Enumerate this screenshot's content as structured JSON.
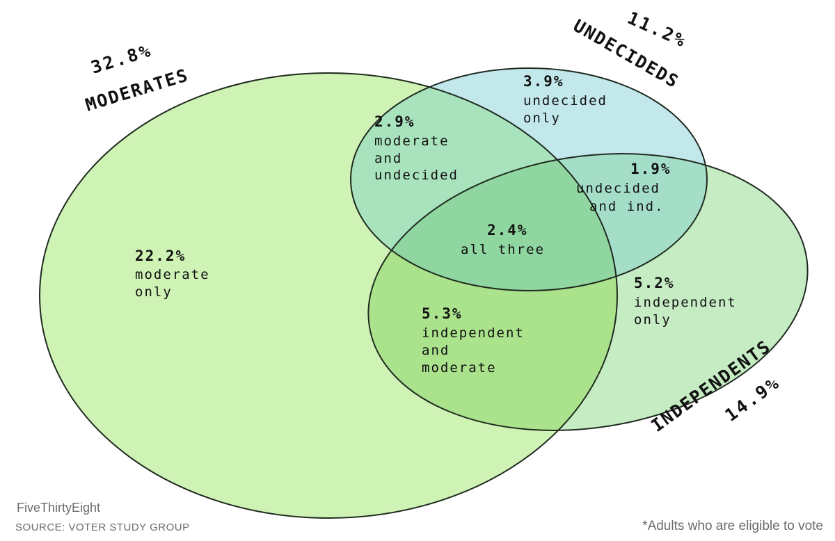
{
  "diagram": {
    "sets": {
      "moderates": {
        "name": "MODERATES",
        "percent": "32.8%",
        "fill": "#cff2b5"
      },
      "undecideds": {
        "name": "UNDECIDEDS",
        "percent": "11.2%",
        "fill": "#c3e8ec"
      },
      "independents": {
        "name": "INDEPENDENTS",
        "percent": "14.9%",
        "fill": "#c6ecc4"
      }
    },
    "regions": {
      "moderate_only": {
        "value": "22.2%",
        "label": [
          "moderate",
          "only"
        ]
      },
      "undecided_only": {
        "value": "3.9%",
        "label": [
          "undecided",
          "only"
        ]
      },
      "independent_only": {
        "value": "5.2%",
        "label": [
          "independent",
          "only"
        ]
      },
      "moderate_and_undecided": {
        "value": "2.9%",
        "label": [
          "moderate",
          "and",
          "undecided"
        ]
      },
      "undecided_and_independent": {
        "value": "1.9%",
        "label": [
          "undecided",
          "and ind."
        ]
      },
      "independent_and_moderate": {
        "value": "5.3%",
        "label": [
          "independent",
          "and",
          "moderate"
        ]
      },
      "all_three": {
        "value": "2.4%",
        "label": [
          "all three"
        ]
      }
    }
  },
  "footer": {
    "brand": "FiveThirtyEight",
    "source": "SOURCE: VOTER STUDY GROUP",
    "note": "*Adults who are eligible to vote"
  }
}
